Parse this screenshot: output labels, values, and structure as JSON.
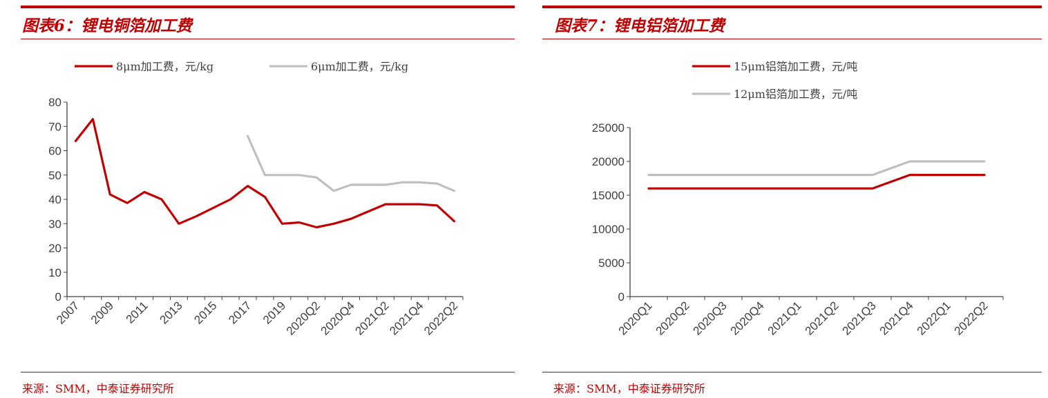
{
  "charts": [
    {
      "title": "图表6：锂电铜箔加工费",
      "source": "来源：SMM，中泰证券研究所",
      "chart_data": {
        "type": "line",
        "title": "锂电铜箔加工费",
        "x": [
          "2007",
          "2008",
          "2009",
          "2010",
          "2011",
          "2012",
          "2013",
          "2014",
          "2015",
          "2016",
          "2017",
          "2018",
          "2019",
          "2020Q1",
          "2020Q2",
          "2020Q3",
          "2020Q4",
          "2021Q1",
          "2021Q2",
          "2021Q3",
          "2021Q4",
          "2022Q1",
          "2022Q2"
        ],
        "xtick_labels": [
          "2007",
          "2009",
          "2011",
          "2013",
          "2015",
          "2017",
          "2019",
          "2020Q2",
          "2020Q4",
          "2021Q2",
          "2021Q4",
          "2022Q2"
        ],
        "ylim": [
          0,
          80
        ],
        "yticks": [
          0,
          10,
          20,
          30,
          40,
          50,
          60,
          70,
          80
        ],
        "series": [
          {
            "name": "8μm加工费，元/kg",
            "color": "#c00000",
            "values": [
              64,
              73,
              42,
              38.5,
              43,
              40,
              30,
              33,
              36.5,
              40,
              45.5,
              41,
              30,
              30.5,
              28.5,
              30,
              32,
              35,
              38,
              38,
              38,
              37.5,
              31
            ]
          },
          {
            "name": "6μm加工费，元/kg",
            "color": "#bfbfbf",
            "values": [
              null,
              null,
              null,
              null,
              null,
              null,
              null,
              null,
              null,
              null,
              66,
              50,
              50,
              50,
              49,
              43.5,
              46,
              46,
              46,
              47,
              47,
              46.5,
              43.5
            ]
          }
        ],
        "legend": "top",
        "grid": false
      }
    },
    {
      "title": "图表7：锂电铝箔加工费",
      "source": "来源：SMM，中泰证券研究所",
      "chart_data": {
        "type": "line",
        "title": "锂电铝箔加工费",
        "x": [
          "2020Q1",
          "2020Q2",
          "2020Q3",
          "2020Q4",
          "2021Q1",
          "2021Q2",
          "2021Q3",
          "2021Q4",
          "2022Q1",
          "2022Q2"
        ],
        "ylim": [
          0,
          25000
        ],
        "yticks": [
          0,
          5000,
          10000,
          15000,
          20000,
          25000
        ],
        "series": [
          {
            "name": "15μm铝箔加工费，元/吨",
            "color": "#c00000",
            "values": [
              16000,
              16000,
              16000,
              16000,
              16000,
              16000,
              16000,
              18000,
              18000,
              18000
            ]
          },
          {
            "name": "12μm铝箔加工费，元/吨",
            "color": "#bfbfbf",
            "values": [
              18000,
              18000,
              18000,
              18000,
              18000,
              18000,
              18000,
              20000,
              20000,
              20000
            ]
          }
        ],
        "legend": "top",
        "grid": false
      }
    }
  ]
}
